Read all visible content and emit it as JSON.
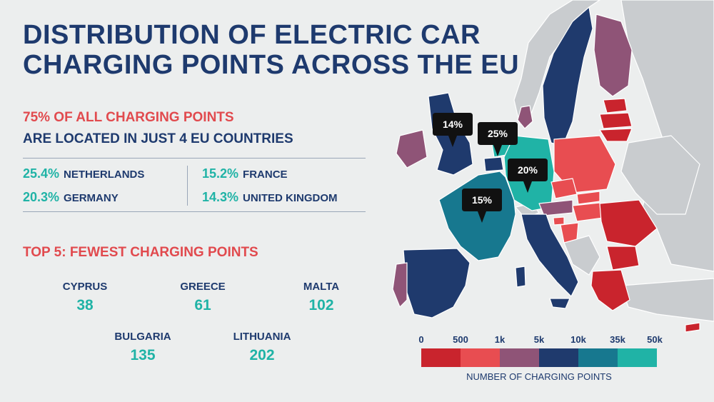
{
  "title": {
    "line1": "DISTRIBUTION OF ELECTRIC CAR",
    "line2": "CHARGING POINTS ACROSS THE EU"
  },
  "highlight": {
    "line1": "75% OF ALL CHARGING POINTS",
    "line2": "ARE LOCATED IN JUST 4 EU COUNTRIES"
  },
  "top_countries": [
    {
      "pct": "25.4%",
      "country": "NETHERLANDS"
    },
    {
      "pct": "20.3%",
      "country": "GERMANY"
    },
    {
      "pct": "15.2%",
      "country": "FRANCE"
    },
    {
      "pct": "14.3%",
      "country": "UNITED KINGDOM"
    }
  ],
  "fewest": {
    "title": "TOP 5: FEWEST CHARGING POINTS",
    "items": [
      {
        "name": "CYPRUS",
        "value": "38"
      },
      {
        "name": "GREECE",
        "value": "61"
      },
      {
        "name": "MALTA",
        "value": "102"
      },
      {
        "name": "BULGARIA",
        "value": "135"
      },
      {
        "name": "LITHUANIA",
        "value": "202"
      }
    ]
  },
  "map": {
    "bubbles": [
      {
        "label": "14%"
      },
      {
        "label": "25%"
      },
      {
        "label": "20%"
      },
      {
        "label": "15%"
      }
    ],
    "colors": {
      "non_eu": "#c9cccf",
      "sea": "#eceeee",
      "border": "#ffffff"
    }
  },
  "legend": {
    "ticks": [
      "0",
      "500",
      "1k",
      "5k",
      "10k",
      "35k",
      "50k"
    ],
    "colors": [
      "#c9242d",
      "#e84d51",
      "#8f5477",
      "#1f3a6d",
      "#17788f",
      "#20b3a6"
    ],
    "caption": "NUMBER OF CHARGING POINTS"
  }
}
